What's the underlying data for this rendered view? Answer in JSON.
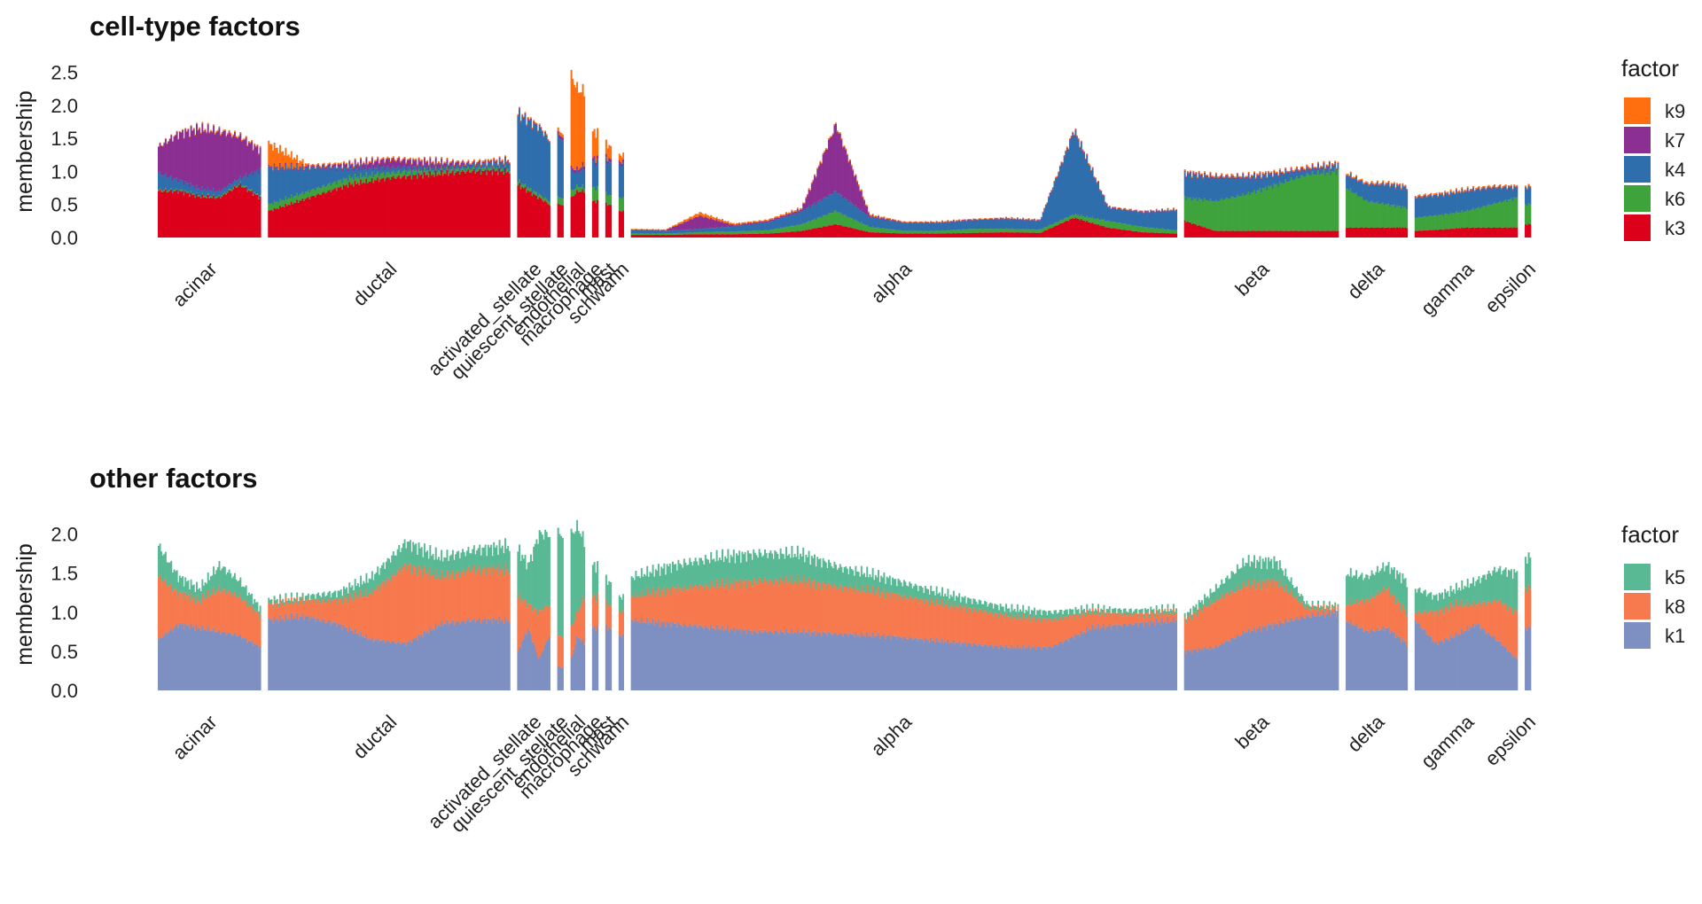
{
  "chart_data": [
    {
      "type": "area",
      "title": "cell-type factors",
      "ylabel": "membership",
      "xlabel": "",
      "ylim": [
        0,
        2.6
      ],
      "yticks": [
        "0.0",
        "0.5",
        "1.0",
        "1.5",
        "2.0",
        "2.5"
      ],
      "legend_title": "factor",
      "legend_position": "right",
      "stack_order": [
        "k3",
        "k6",
        "k4",
        "k7",
        "k9"
      ],
      "legend_order": [
        "k9",
        "k7",
        "k4",
        "k6",
        "k3"
      ],
      "colors": {
        "k9": "#ff6f0f",
        "k7": "#8b2f92",
        "k4": "#2f6ead",
        "k6": "#3fa33c",
        "k3": "#dc001b"
      },
      "groups": [
        {
          "name": "acinar",
          "size": 100,
          "samples": [
            {
              "k3": 0.7,
              "k6": 0.02,
              "k4": 0.25,
              "k7": 0.4,
              "k9": 0.01
            },
            {
              "k3": 0.7,
              "k6": 0.02,
              "k4": 0.15,
              "k7": 0.7,
              "k9": 0.01
            },
            {
              "k3": 0.62,
              "k6": 0.02,
              "k4": 0.1,
              "k7": 0.9,
              "k9": 0.02
            },
            {
              "k3": 0.6,
              "k6": 0.02,
              "k4": 0.08,
              "k7": 0.9,
              "k9": 0.02
            },
            {
              "k3": 0.8,
              "k6": 0.02,
              "k4": 0.08,
              "k7": 0.62,
              "k9": 0.02
            },
            {
              "k3": 0.6,
              "k6": 0.02,
              "k4": 0.4,
              "k7": 0.3,
              "k9": 0.02
            }
          ]
        },
        {
          "name": "ductal",
          "size": 235,
          "samples": [
            {
              "k3": 0.4,
              "k6": 0.1,
              "k4": 0.55,
              "k7": 0.02,
              "k9": 0.35
            },
            {
              "k3": 0.6,
              "k6": 0.1,
              "k4": 0.35,
              "k7": 0.02,
              "k9": 0.02
            },
            {
              "k3": 0.8,
              "k6": 0.1,
              "k4": 0.15,
              "k7": 0.05,
              "k9": 0.02
            },
            {
              "k3": 0.9,
              "k6": 0.08,
              "k4": 0.08,
              "k7": 0.12,
              "k9": 0.02
            },
            {
              "k3": 0.95,
              "k6": 0.06,
              "k4": 0.05,
              "k7": 0.08,
              "k9": 0.02
            },
            {
              "k3": 1.0,
              "k6": 0.04,
              "k4": 0.05,
              "k7": 0.03,
              "k9": 0.02
            },
            {
              "k3": 1.0,
              "k6": 0.04,
              "k4": 0.1,
              "k7": 0.02,
              "k9": 0.02
            }
          ]
        },
        {
          "name": "activated_stellate",
          "size": 32,
          "samples": [
            {
              "k3": 0.8,
              "k6": 0.05,
              "k4": 1.0,
              "k7": 0.02,
              "k9": 0.02
            },
            {
              "k3": 0.7,
              "k6": 0.05,
              "k4": 1.0,
              "k7": 0.02,
              "k9": 0.02
            },
            {
              "k3": 0.6,
              "k6": 0.05,
              "k4": 1.0,
              "k7": 0.02,
              "k9": 0.02
            },
            {
              "k3": 0.5,
              "k6": 0.05,
              "k4": 0.9,
              "k7": 0.02,
              "k9": 0.02
            }
          ]
        },
        {
          "name": "quiescent_stellate",
          "size": 6,
          "samples": [
            {
              "k3": 0.5,
              "k6": 0.1,
              "k4": 0.9,
              "k7": 0.05,
              "k9": 0.05
            }
          ]
        },
        {
          "name": "endothelial",
          "size": 14,
          "samples": [
            {
              "k3": 0.6,
              "k6": 0.1,
              "k4": 0.3,
              "k7": 0.05,
              "k9": 1.4
            },
            {
              "k3": 0.7,
              "k6": 0.08,
              "k4": 0.2,
              "k7": 0.05,
              "k9": 1.2
            },
            {
              "k3": 0.7,
              "k6": 0.06,
              "k4": 0.3,
              "k7": 0.05,
              "k9": 1.1
            }
          ]
        },
        {
          "name": "macrophage",
          "size": 6,
          "samples": [
            {
              "k3": 0.55,
              "k6": 0.2,
              "k4": 0.4,
              "k7": 0.05,
              "k9": 0.4
            }
          ]
        },
        {
          "name": "mast",
          "size": 6,
          "samples": [
            {
              "k3": 0.5,
              "k6": 0.15,
              "k4": 0.5,
              "k7": 0.05,
              "k9": 0.2
            }
          ]
        },
        {
          "name": "schwann",
          "size": 5,
          "samples": [
            {
              "k3": 0.4,
              "k6": 0.2,
              "k4": 0.5,
              "k7": 0.05,
              "k9": 0.1
            }
          ]
        },
        {
          "name": "alpha",
          "size": 530,
          "samples": [
            {
              "k3": 0.04,
              "k6": 0.02,
              "k4": 0.05,
              "k7": 0.01,
              "k9": 0.01
            },
            {
              "k3": 0.04,
              "k6": 0.02,
              "k4": 0.04,
              "k7": 0.01,
              "k9": 0.01
            },
            {
              "k3": 0.05,
              "k6": 0.03,
              "k4": 0.05,
              "k7": 0.2,
              "k9": 0.05
            },
            {
              "k3": 0.05,
              "k6": 0.04,
              "k4": 0.08,
              "k7": 0.02,
              "k9": 0.02
            },
            {
              "k3": 0.06,
              "k6": 0.05,
              "k4": 0.12,
              "k7": 0.02,
              "k9": 0.02
            },
            {
              "k3": 0.1,
              "k6": 0.1,
              "k4": 0.2,
              "k7": 0.03,
              "k9": 0.02
            },
            {
              "k3": 0.2,
              "k6": 0.2,
              "k4": 0.3,
              "k7": 1.0,
              "k9": 0.02
            },
            {
              "k3": 0.08,
              "k6": 0.08,
              "k4": 0.15,
              "k7": 0.02,
              "k9": 0.02
            },
            {
              "k3": 0.06,
              "k6": 0.04,
              "k4": 0.12,
              "k7": 0.01,
              "k9": 0.01
            },
            {
              "k3": 0.06,
              "k6": 0.04,
              "k4": 0.12,
              "k7": 0.01,
              "k9": 0.01
            },
            {
              "k3": 0.07,
              "k6": 0.06,
              "k4": 0.13,
              "k7": 0.01,
              "k9": 0.01
            },
            {
              "k3": 0.08,
              "k6": 0.05,
              "k4": 0.15,
              "k7": 0.01,
              "k9": 0.01
            },
            {
              "k3": 0.07,
              "k6": 0.05,
              "k4": 0.13,
              "k7": 0.01,
              "k9": 0.01
            },
            {
              "k3": 0.3,
              "k6": 0.05,
              "k4": 1.25,
              "k7": 0.02,
              "k9": 0.02
            },
            {
              "k3": 0.15,
              "k6": 0.1,
              "k4": 0.2,
              "k7": 0.01,
              "k9": 0.01
            },
            {
              "k3": 0.08,
              "k6": 0.08,
              "k4": 0.22,
              "k7": 0.01,
              "k9": 0.01
            },
            {
              "k3": 0.06,
              "k6": 0.05,
              "k4": 0.3,
              "k7": 0.01,
              "k9": 0.01
            }
          ]
        },
        {
          "name": "beta",
          "size": 150,
          "samples": [
            {
              "k3": 0.25,
              "k6": 0.35,
              "k4": 0.35,
              "k7": 0.02,
              "k9": 0.02
            },
            {
              "k3": 0.1,
              "k6": 0.45,
              "k4": 0.35,
              "k7": 0.02,
              "k9": 0.02
            },
            {
              "k3": 0.1,
              "k6": 0.55,
              "k4": 0.25,
              "k7": 0.02,
              "k9": 0.02
            },
            {
              "k3": 0.1,
              "k6": 0.7,
              "k4": 0.15,
              "k7": 0.02,
              "k9": 0.02
            },
            {
              "k3": 0.1,
              "k6": 0.85,
              "k4": 0.08,
              "k7": 0.02,
              "k9": 0.02
            },
            {
              "k3": 0.1,
              "k6": 0.9,
              "k4": 0.08,
              "k7": 0.02,
              "k9": 0.02
            }
          ]
        },
        {
          "name": "delta",
          "size": 60,
          "samples": [
            {
              "k3": 0.15,
              "k6": 0.6,
              "k4": 0.2,
              "k7": 0.01,
              "k9": 0.02
            },
            {
              "k3": 0.15,
              "k6": 0.4,
              "k4": 0.25,
              "k7": 0.01,
              "k9": 0.02
            },
            {
              "k3": 0.15,
              "k6": 0.35,
              "k4": 0.3,
              "k7": 0.01,
              "k9": 0.02
            },
            {
              "k3": 0.15,
              "k6": 0.3,
              "k4": 0.3,
              "k7": 0.01,
              "k9": 0.02
            }
          ]
        },
        {
          "name": "gamma",
          "size": 100,
          "samples": [
            {
              "k3": 0.1,
              "k6": 0.2,
              "k4": 0.3,
              "k7": 0.01,
              "k9": 0.02
            },
            {
              "k3": 0.12,
              "k6": 0.22,
              "k4": 0.3,
              "k7": 0.01,
              "k9": 0.02
            },
            {
              "k3": 0.15,
              "k6": 0.25,
              "k4": 0.3,
              "k7": 0.01,
              "k9": 0.02
            },
            {
              "k3": 0.15,
              "k6": 0.35,
              "k4": 0.25,
              "k7": 0.01,
              "k9": 0.02
            },
            {
              "k3": 0.15,
              "k6": 0.45,
              "k4": 0.15,
              "k7": 0.01,
              "k9": 0.02
            }
          ]
        },
        {
          "name": "epsilon",
          "size": 6,
          "samples": [
            {
              "k3": 0.2,
              "k6": 0.3,
              "k4": 0.25,
              "k7": 0.01,
              "k9": 0.02
            }
          ]
        }
      ]
    },
    {
      "type": "area",
      "title": "other factors",
      "ylabel": "membership",
      "xlabel": "",
      "ylim": [
        0,
        2.2
      ],
      "yticks": [
        "0.0",
        "0.5",
        "1.0",
        "1.5",
        "2.0"
      ],
      "legend_title": "factor",
      "legend_position": "right",
      "stack_order": [
        "k1",
        "k8",
        "k5"
      ],
      "legend_order": [
        "k5",
        "k8",
        "k1"
      ],
      "colors": {
        "k5": "#58b994",
        "k8": "#f7794e",
        "k1": "#7e90c2"
      },
      "groups": [
        {
          "name": "acinar",
          "size": 100,
          "samples": [
            {
              "k1": 0.65,
              "k8": 0.8,
              "k5": 0.4
            },
            {
              "k1": 0.85,
              "k8": 0.4,
              "k5": 0.2
            },
            {
              "k1": 0.8,
              "k8": 0.35,
              "k5": 0.15
            },
            {
              "k1": 0.75,
              "k8": 0.55,
              "k5": 0.3
            },
            {
              "k1": 0.7,
              "k8": 0.5,
              "k5": 0.2
            },
            {
              "k1": 0.55,
              "k8": 0.4,
              "k5": 0.1
            }
          ]
        },
        {
          "name": "ductal",
          "size": 235,
          "samples": [
            {
              "k1": 0.9,
              "k8": 0.2,
              "k5": 0.05
            },
            {
              "k1": 0.95,
              "k8": 0.2,
              "k5": 0.05
            },
            {
              "k1": 0.85,
              "k8": 0.3,
              "k5": 0.1
            },
            {
              "k1": 0.65,
              "k8": 0.6,
              "k5": 0.2
            },
            {
              "k1": 0.6,
              "k8": 1.0,
              "k5": 0.3
            },
            {
              "k1": 0.85,
              "k8": 0.6,
              "k5": 0.25
            },
            {
              "k1": 0.9,
              "k8": 0.65,
              "k5": 0.25
            },
            {
              "k1": 0.9,
              "k8": 0.65,
              "k5": 0.3
            }
          ]
        },
        {
          "name": "activated_stellate",
          "size": 32,
          "samples": [
            {
              "k1": 0.5,
              "k8": 0.7,
              "k5": 0.6
            },
            {
              "k1": 0.8,
              "k8": 0.3,
              "k5": 0.5
            },
            {
              "k1": 0.4,
              "k8": 0.6,
              "k5": 1.0
            },
            {
              "k1": 0.7,
              "k8": 0.4,
              "k5": 0.9
            }
          ]
        },
        {
          "name": "quiescent_stellate",
          "size": 6,
          "samples": [
            {
              "k1": 0.3,
              "k8": 0.4,
              "k5": 1.3
            }
          ]
        },
        {
          "name": "endothelial",
          "size": 14,
          "samples": [
            {
              "k1": 0.4,
              "k8": 0.4,
              "k5": 1.2
            },
            {
              "k1": 0.7,
              "k8": 0.3,
              "k5": 1.1
            },
            {
              "k1": 0.6,
              "k8": 0.6,
              "k5": 0.7
            }
          ]
        },
        {
          "name": "macrophage",
          "size": 6,
          "samples": [
            {
              "k1": 0.8,
              "k8": 0.4,
              "k5": 0.4
            }
          ]
        },
        {
          "name": "mast",
          "size": 6,
          "samples": [
            {
              "k1": 0.8,
              "k8": 0.3,
              "k5": 0.3
            }
          ]
        },
        {
          "name": "schwann",
          "size": 5,
          "samples": [
            {
              "k1": 0.7,
              "k8": 0.3,
              "k5": 0.2
            }
          ]
        },
        {
          "name": "alpha",
          "size": 530,
          "samples": [
            {
              "k1": 0.9,
              "k8": 0.3,
              "k5": 0.25
            },
            {
              "k1": 0.85,
              "k8": 0.45,
              "k5": 0.3
            },
            {
              "k1": 0.8,
              "k8": 0.55,
              "k5": 0.35
            },
            {
              "k1": 0.75,
              "k8": 0.65,
              "k5": 0.35
            },
            {
              "k1": 0.75,
              "k8": 0.65,
              "k5": 0.35
            },
            {
              "k1": 0.72,
              "k8": 0.6,
              "k5": 0.25
            },
            {
              "k1": 0.7,
              "k8": 0.55,
              "k5": 0.2
            },
            {
              "k1": 0.65,
              "k8": 0.5,
              "k5": 0.15
            },
            {
              "k1": 0.6,
              "k8": 0.45,
              "k5": 0.12
            },
            {
              "k1": 0.55,
              "k8": 0.4,
              "k5": 0.1
            },
            {
              "k1": 0.55,
              "k8": 0.35,
              "k5": 0.1
            },
            {
              "k1": 0.8,
              "k8": 0.2,
              "k5": 0.05
            },
            {
              "k1": 0.85,
              "k8": 0.12,
              "k5": 0.05
            },
            {
              "k1": 0.9,
              "k8": 0.1,
              "k5": 0.05
            }
          ]
        },
        {
          "name": "beta",
          "size": 150,
          "samples": [
            {
              "k1": 0.5,
              "k8": 0.4,
              "k5": 0.05
            },
            {
              "k1": 0.55,
              "k8": 0.6,
              "k5": 0.15
            },
            {
              "k1": 0.75,
              "k8": 0.6,
              "k5": 0.3
            },
            {
              "k1": 0.85,
              "k8": 0.55,
              "k5": 0.25
            },
            {
              "k1": 0.95,
              "k8": 0.1,
              "k5": 0.05
            },
            {
              "k1": 1.0,
              "k8": 0.05,
              "k5": 0.03
            }
          ]
        },
        {
          "name": "delta",
          "size": 60,
          "samples": [
            {
              "k1": 0.9,
              "k8": 0.2,
              "k5": 0.4
            },
            {
              "k1": 0.75,
              "k8": 0.4,
              "k5": 0.3
            },
            {
              "k1": 0.8,
              "k8": 0.5,
              "k5": 0.3
            },
            {
              "k1": 0.6,
              "k8": 0.4,
              "k5": 0.4
            }
          ]
        },
        {
          "name": "gamma",
          "size": 100,
          "samples": [
            {
              "k1": 0.9,
              "k8": 0.1,
              "k5": 0.3
            },
            {
              "k1": 0.6,
              "k8": 0.4,
              "k5": 0.2
            },
            {
              "k1": 0.7,
              "k8": 0.4,
              "k5": 0.2
            },
            {
              "k1": 0.85,
              "k8": 0.25,
              "k5": 0.3
            },
            {
              "k1": 0.65,
              "k8": 0.5,
              "k5": 0.4
            },
            {
              "k1": 0.4,
              "k8": 0.6,
              "k5": 0.5
            }
          ]
        },
        {
          "name": "epsilon",
          "size": 6,
          "samples": [
            {
              "k1": 0.8,
              "k8": 0.5,
              "k5": 0.4
            }
          ]
        }
      ]
    }
  ],
  "category_labels": {
    "acinar": "acinar",
    "ductal": "ductal",
    "activated_stellate": "activated_stellate",
    "quiescent_stellate": "quiescent_stellate",
    "endothelial": "endothelial",
    "macrophage": "macrophage",
    "mast": "mast",
    "schwann": "schwann",
    "alpha": "alpha",
    "beta": "beta",
    "delta": "delta",
    "gamma": "gamma",
    "epsilon": "epsilon"
  }
}
